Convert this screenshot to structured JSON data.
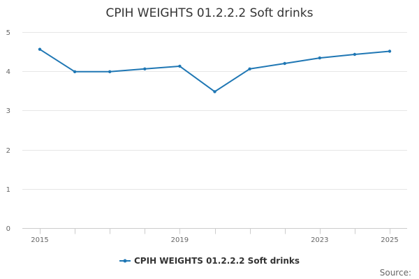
{
  "chart_data": {
    "type": "line",
    "title": "CPIH WEIGHTS 01.2.2.2 Soft drinks",
    "xlabel": "",
    "ylabel": "",
    "x": [
      2015,
      2016,
      2017,
      2018,
      2019,
      2020,
      2021,
      2022,
      2023,
      2024,
      2025
    ],
    "x_tick_labels": [
      "2015",
      "2019",
      "2023",
      "2025"
    ],
    "x_tick_values": [
      2015,
      2019,
      2023,
      2025
    ],
    "y_tick_labels": [
      "0",
      "1",
      "2",
      "3",
      "4",
      "5"
    ],
    "y_tick_values": [
      0,
      1,
      2,
      3,
      4,
      5
    ],
    "ylim": [
      0,
      5
    ],
    "xlim": [
      2015,
      2025
    ],
    "grid": true,
    "legend_position": "bottom-center",
    "series": [
      {
        "name": "CPIH WEIGHTS 01.2.2.2 Soft drinks",
        "color": "#1f77b4",
        "values": [
          4.56,
          3.99,
          3.99,
          4.06,
          4.13,
          3.48,
          4.06,
          4.2,
          4.34,
          4.43,
          4.51
        ]
      }
    ]
  },
  "source_label": "Source:"
}
